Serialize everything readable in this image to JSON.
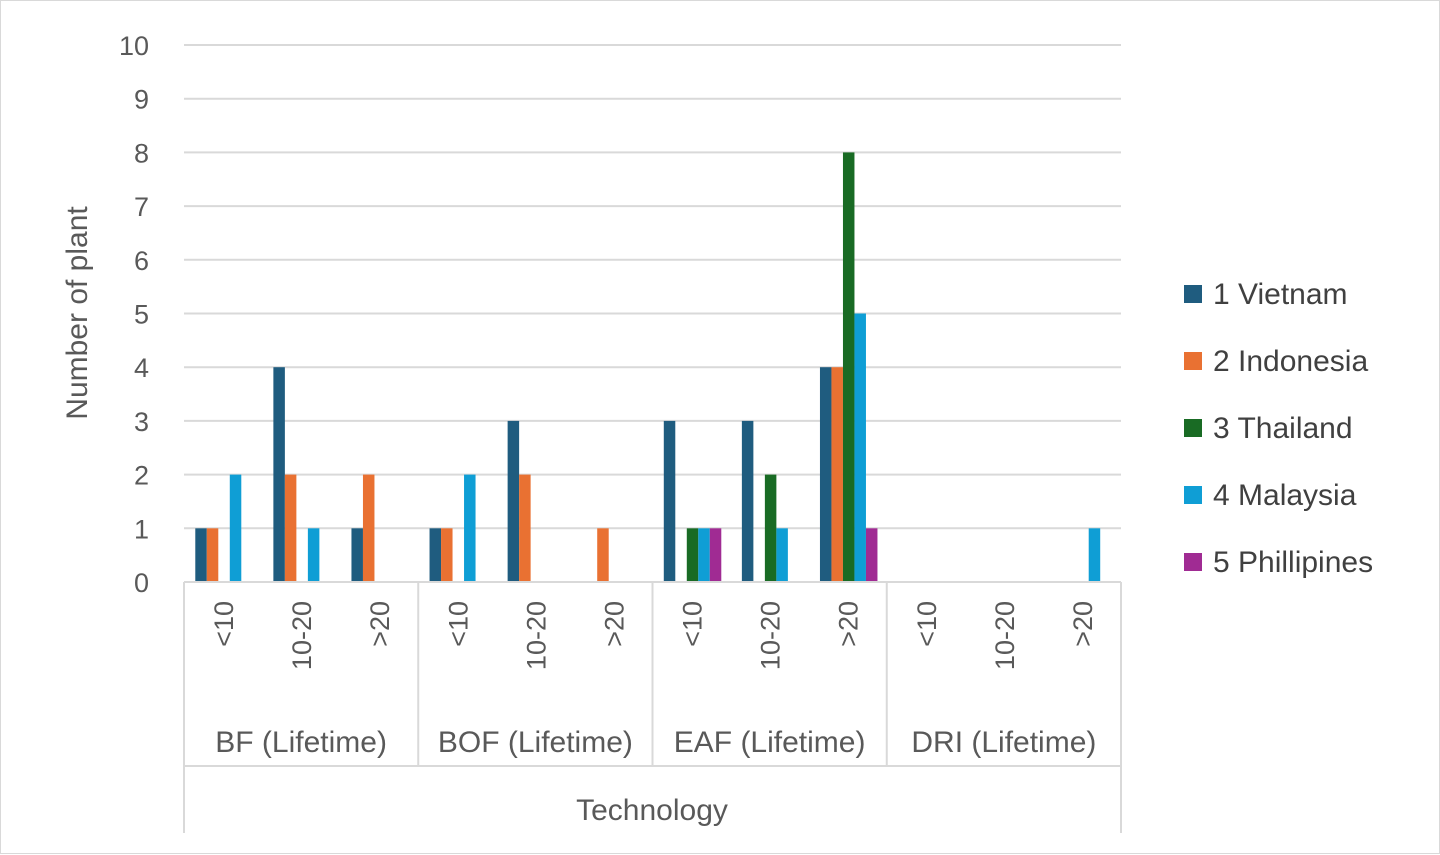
{
  "chart_data": {
    "type": "bar",
    "ylabel": "Number of plant",
    "xlabel": "Technology",
    "ylim": [
      0,
      10
    ],
    "yticks": [
      "0",
      "1",
      "2",
      "3",
      "4",
      "5",
      "6",
      "7",
      "8",
      "9",
      "10"
    ],
    "grid": true,
    "legend_position": "right",
    "groups": [
      {
        "label": "BF (Lifetime)",
        "subcategories": [
          "<10",
          "10-20",
          ">20"
        ]
      },
      {
        "label": "BOF (Lifetime)",
        "subcategories": [
          "<10",
          "10-20",
          ">20"
        ]
      },
      {
        "label": "EAF (Lifetime)",
        "subcategories": [
          "<10",
          "10-20",
          ">20"
        ]
      },
      {
        "label": "DRI (Lifetime)",
        "subcategories": [
          "<10",
          "10-20",
          ">20"
        ]
      }
    ],
    "series": [
      {
        "name": "1 Vietnam",
        "color": "#1f5c7f",
        "values": [
          1,
          4,
          1,
          1,
          3,
          null,
          3,
          3,
          4,
          null,
          null,
          null
        ]
      },
      {
        "name": "2 Indonesia",
        "color": "#e97132",
        "values": [
          1,
          2,
          2,
          1,
          2,
          1,
          null,
          null,
          4,
          null,
          null,
          null
        ]
      },
      {
        "name": "3 Thailand",
        "color": "#196b24",
        "values": [
          null,
          null,
          null,
          null,
          null,
          null,
          1,
          2,
          8,
          null,
          null,
          null
        ]
      },
      {
        "name": "4 Malaysia",
        "color": "#0f9ed5",
        "values": [
          2,
          1,
          null,
          2,
          null,
          null,
          1,
          1,
          5,
          null,
          null,
          1
        ]
      },
      {
        "name": "5 Phillipines",
        "color": "#a02b93",
        "values": [
          null,
          null,
          null,
          null,
          null,
          null,
          1,
          null,
          1,
          null,
          null,
          null
        ]
      }
    ]
  }
}
